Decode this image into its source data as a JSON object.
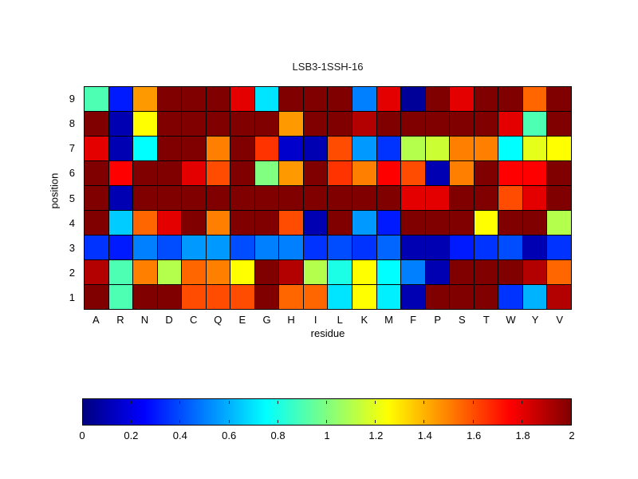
{
  "figure": {
    "title": "LSB3-1SSH-16",
    "xlabel": "residue",
    "ylabel": "position"
  },
  "chart_data": {
    "type": "heatmap",
    "title": "LSB3-1SSH-16",
    "xlabel": "residue",
    "ylabel": "position",
    "colormap": "jet",
    "columns": [
      "A",
      "R",
      "N",
      "D",
      "C",
      "Q",
      "E",
      "G",
      "H",
      "I",
      "L",
      "K",
      "M",
      "F",
      "P",
      "S",
      "T",
      "W",
      "Y",
      "V"
    ],
    "rows": [
      "9",
      "8",
      "7",
      "6",
      "5",
      "4",
      "3",
      "2",
      "1"
    ],
    "values": [
      [
        0.9,
        0.3,
        1.45,
        2,
        2,
        2,
        1.8,
        0.7,
        2,
        2,
        2,
        0.5,
        1.8,
        0.05,
        2,
        1.8,
        2,
        2,
        1.55,
        2
      ],
      [
        2,
        0.1,
        1.25,
        2,
        2,
        2,
        2,
        2,
        1.45,
        2,
        2,
        1.9,
        2,
        2,
        2,
        2,
        2,
        1.8,
        0.9,
        2
      ],
      [
        1.8,
        0.1,
        0.75,
        2,
        2,
        1.5,
        2,
        1.65,
        0.15,
        0.1,
        1.6,
        0.55,
        0.35,
        1.1,
        1.15,
        1.5,
        1.5,
        0.75,
        1.2,
        1.25
      ],
      [
        2,
        1.75,
        2,
        2,
        1.8,
        1.6,
        2,
        1.0,
        1.45,
        2,
        1.65,
        1.5,
        1.75,
        1.6,
        0.1,
        1.5,
        2,
        1.75,
        1.75,
        2
      ],
      [
        2,
        0.1,
        2,
        2,
        2,
        2,
        2,
        2,
        2,
        2,
        2,
        2,
        2,
        1.8,
        1.8,
        2,
        2,
        1.6,
        1.8,
        2
      ],
      [
        2,
        0.65,
        1.55,
        1.8,
        2,
        1.5,
        2,
        2,
        1.6,
        0.1,
        2,
        0.55,
        0.3,
        2,
        2,
        2,
        1.25,
        2,
        2,
        1.1
      ],
      [
        0.35,
        0.3,
        0.5,
        0.4,
        0.55,
        0.55,
        0.4,
        0.5,
        0.5,
        0.35,
        0.4,
        0.35,
        0.45,
        0.1,
        0.1,
        0.3,
        0.35,
        0.4,
        0.1,
        0.35
      ],
      [
        1.9,
        0.9,
        1.5,
        1.1,
        1.55,
        1.5,
        1.25,
        2,
        1.9,
        1.1,
        0.8,
        1.25,
        0.75,
        0.5,
        0.1,
        2,
        2,
        2,
        1.9,
        1.55
      ],
      [
        2,
        0.9,
        2,
        2,
        1.6,
        1.6,
        1.6,
        2,
        1.55,
        1.55,
        0.7,
        1.25,
        0.72,
        0.1,
        2,
        2,
        2,
        0.35,
        0.6,
        1.9
      ]
    ],
    "colorbar": {
      "min": 0,
      "max": 2,
      "tick_labels": [
        "0",
        "0.2",
        "0.4",
        "0.6",
        "0.8",
        "1",
        "1.2",
        "1.4",
        "1.6",
        "1.8",
        "2"
      ]
    }
  }
}
